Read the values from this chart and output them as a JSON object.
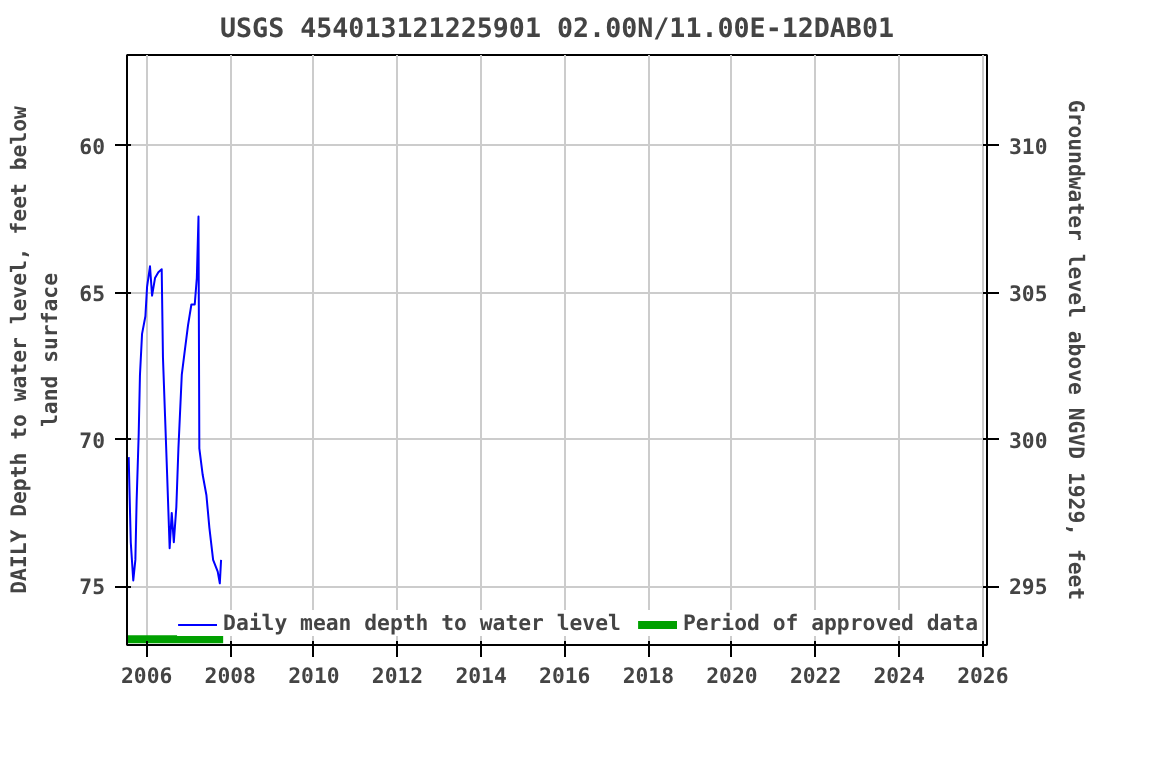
{
  "chart_data": {
    "type": "line",
    "title": "USGS 454013121225901 02.00N/11.00E-12DAB01",
    "ylabel": "DAILY Depth to water level, feet below\nland surface",
    "y2label": "Groundwater level above NGVD 1929, feet",
    "xlim": [
      2005.53,
      2026.1
    ],
    "xticks": [
      2006,
      2008,
      2010,
      2012,
      2014,
      2016,
      2018,
      2020,
      2022,
      2024,
      2026
    ],
    "ylim": [
      77.0,
      56.9
    ],
    "yticks": [
      60,
      65,
      70,
      75
    ],
    "y2lim": [
      293.0,
      313.1
    ],
    "y2ticks": [
      295,
      300,
      305,
      310
    ],
    "grid": true,
    "legend": "bottom right",
    "series": [
      {
        "name": "Daily mean depth to water level",
        "color": "#0000ff",
        "x": [
          2005.57,
          2005.62,
          2005.68,
          2005.73,
          2005.76,
          2005.81,
          2005.84,
          2005.89,
          2005.97,
          2006.01,
          2006.08,
          2006.13,
          2006.2,
          2006.28,
          2006.36,
          2006.39,
          2006.44,
          2006.49,
          2006.55,
          2006.6,
          2006.65,
          2006.71,
          2006.76,
          2006.84,
          2006.91,
          2006.99,
          2007.07,
          2007.15,
          2007.2,
          2007.24,
          2007.26,
          2007.34,
          2007.43,
          2007.5,
          2007.59,
          2007.7,
          2007.75,
          2007.78
        ],
        "values": [
          70.6,
          73.5,
          74.8,
          74.1,
          72.1,
          69.8,
          67.8,
          66.4,
          65.8,
          64.8,
          64.1,
          65.1,
          64.5,
          64.3,
          64.2,
          67.2,
          69.2,
          71.2,
          73.7,
          72.5,
          73.5,
          72.3,
          70.3,
          67.8,
          67.0,
          66.1,
          65.4,
          65.4,
          64.5,
          62.4,
          70.3,
          71.2,
          71.9,
          73.0,
          74.1,
          74.5,
          74.9,
          74.1
        ]
      },
      {
        "name": "Period of approved data",
        "color": "#00a000",
        "x": [
          2005.55,
          2007.83
        ],
        "values": [
          76.8,
          76.8
        ]
      }
    ]
  }
}
